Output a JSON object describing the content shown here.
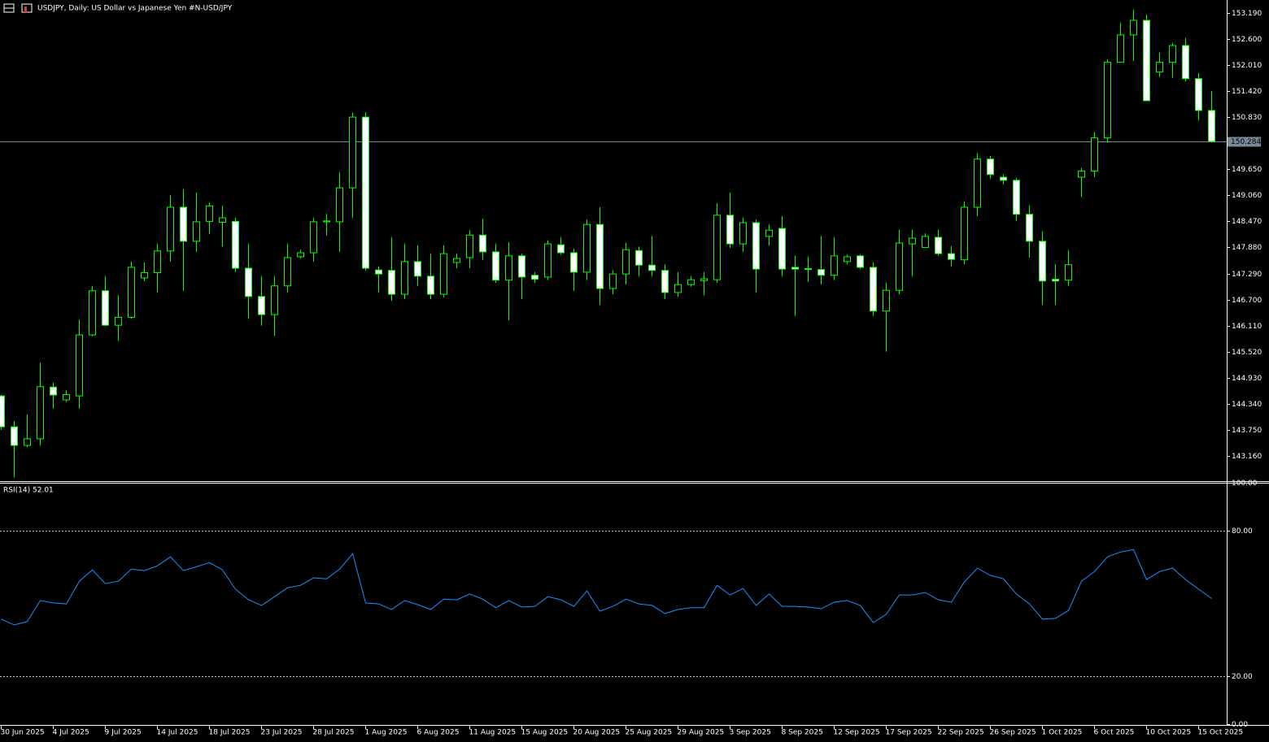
{
  "chart_data": [
    {
      "type": "candlestick",
      "title": "USDJPY, Daily:  US Dollar vs  Japanese Yen #N-USD/JPY",
      "categories": [
        "30 Jun 2025",
        null,
        null,
        null,
        "4 Jul 2025",
        null,
        null,
        null,
        "9 Jul 2025",
        null,
        null,
        null,
        "14 Jul 2025",
        null,
        null,
        null,
        "18 Jul 2025",
        null,
        null,
        null,
        "23 Jul 2025",
        null,
        null,
        null,
        "28 Jul 2025",
        null,
        null,
        null,
        "1 Aug 2025",
        null,
        null,
        null,
        "6 Aug 2025",
        null,
        null,
        null,
        "11 Aug 2025",
        null,
        null,
        null,
        "15 Aug 2025",
        null,
        null,
        null,
        "20 Aug 2025",
        null,
        null,
        null,
        "25 Aug 2025",
        null,
        null,
        null,
        "29 Aug 2025",
        null,
        null,
        null,
        "3 Sep 2025",
        null,
        null,
        null,
        "8 Sep 2025",
        null,
        null,
        null,
        "12 Sep 2025",
        null,
        null,
        null,
        "17 Sep 2025",
        null,
        null,
        null,
        "22 Sep 2025",
        null,
        null,
        null,
        "26 Sep 2025",
        null,
        null,
        null,
        "1 Oct 2025",
        null,
        null,
        null,
        "6 Oct 2025",
        null,
        null,
        null,
        "10 Oct 2025",
        null,
        null,
        null,
        "15 Oct 2025",
        null
      ],
      "open": [
        144.52,
        143.82,
        143.4,
        143.55,
        144.72,
        144.43,
        144.52,
        145.9,
        146.9,
        146.12,
        146.3,
        147.19,
        147.31,
        147.8,
        148.79,
        148.02,
        148.47,
        148.45,
        148.47,
        147.41,
        146.77,
        146.36,
        147.01,
        147.67,
        147.76,
        148.46,
        148.46,
        149.23,
        150.83,
        147.37,
        147.36,
        146.82,
        147.56,
        147.23,
        146.82,
        147.54,
        147.65,
        148.16,
        147.78,
        147.14,
        147.69,
        147.25,
        147.21,
        147.94,
        147.76,
        147.32,
        148.4,
        146.95,
        147.28,
        147.81,
        147.48,
        147.36,
        146.86,
        147.04,
        147.13,
        147.15,
        148.61,
        147.96,
        148.44,
        148.13,
        148.31,
        147.43,
        147.39,
        147.38,
        147.25,
        147.56,
        147.69,
        147.43,
        146.44,
        146.91,
        147.96,
        147.88,
        148.11,
        147.74,
        147.6,
        148.79,
        149.88,
        149.47,
        149.4,
        148.63,
        148.02,
        147.16,
        147.14,
        149.47,
        149.61,
        150.36,
        152.07,
        152.69,
        153.02,
        151.85,
        152.07,
        152.45,
        151.7,
        150.98
      ],
      "high": [
        144.55,
        143.95,
        144.1,
        145.27,
        144.82,
        144.65,
        146.25,
        147.01,
        147.23,
        146.8,
        147.56,
        147.54,
        147.96,
        149.07,
        149.2,
        149.12,
        148.9,
        148.82,
        148.55,
        147.96,
        147.23,
        147.23,
        147.96,
        147.83,
        148.55,
        148.64,
        149.58,
        150.93,
        150.94,
        147.45,
        148.11,
        147.96,
        147.93,
        147.74,
        147.93,
        147.74,
        148.27,
        148.53,
        147.96,
        148.0,
        147.74,
        147.32,
        148.04,
        148.11,
        147.85,
        148.51,
        148.79,
        147.36,
        147.98,
        147.9,
        148.14,
        147.5,
        147.32,
        147.23,
        147.32,
        148.88,
        149.12,
        148.55,
        148.51,
        148.4,
        148.59,
        147.69,
        147.67,
        148.14,
        148.11,
        147.72,
        147.72,
        147.54,
        147.08,
        148.28,
        148.28,
        148.2,
        148.28,
        147.91,
        148.92,
        150.01,
        149.95,
        149.53,
        149.45,
        148.83,
        148.24,
        147.5,
        147.82,
        149.68,
        150.49,
        152.14,
        152.97,
        153.26,
        153.15,
        152.29,
        152.51,
        152.62,
        151.83,
        151.42
      ],
      "low": [
        143.75,
        142.68,
        143.36,
        143.4,
        144.23,
        144.38,
        144.23,
        145.87,
        146.1,
        145.77,
        146.27,
        147.12,
        146.86,
        147.56,
        146.9,
        147.78,
        148.18,
        147.9,
        147.32,
        146.27,
        146.11,
        145.88,
        146.86,
        147.63,
        147.56,
        148.15,
        147.78,
        148.55,
        147.36,
        146.86,
        146.67,
        146.71,
        147.01,
        146.71,
        146.75,
        147.41,
        147.41,
        147.6,
        147.08,
        146.23,
        146.71,
        147.08,
        147.14,
        147.72,
        146.9,
        147.14,
        146.58,
        146.82,
        147.04,
        147.23,
        147.23,
        146.71,
        146.77,
        146.99,
        146.8,
        147.08,
        147.87,
        147.78,
        146.86,
        147.92,
        147.23,
        146.33,
        147.1,
        147.04,
        147.14,
        147.5,
        147.39,
        146.33,
        145.52,
        146.82,
        147.23,
        147.87,
        147.69,
        147.45,
        147.5,
        148.59,
        149.44,
        149.31,
        148.48,
        147.65,
        146.58,
        146.58,
        147.01,
        149.02,
        149.47,
        150.25,
        152.07,
        152.1,
        151.2,
        151.74,
        151.72,
        151.64,
        150.76,
        150.25
      ],
      "close": [
        143.82,
        143.4,
        143.55,
        144.73,
        144.54,
        144.55,
        145.9,
        146.9,
        146.12,
        146.3,
        147.43,
        147.31,
        147.8,
        148.79,
        148.02,
        148.46,
        148.82,
        148.55,
        147.41,
        146.77,
        146.36,
        147.01,
        147.65,
        147.76,
        148.46,
        148.48,
        149.23,
        150.83,
        147.41,
        147.28,
        146.82,
        147.56,
        147.23,
        146.82,
        147.74,
        147.63,
        148.16,
        147.78,
        147.14,
        147.69,
        147.21,
        147.16,
        147.96,
        147.76,
        147.32,
        148.4,
        146.95,
        147.28,
        147.83,
        147.48,
        147.36,
        146.86,
        147.04,
        147.15,
        147.17,
        148.61,
        147.96,
        148.44,
        147.39,
        148.27,
        147.39,
        147.39,
        147.4,
        147.25,
        147.69,
        147.67,
        147.43,
        146.44,
        146.91,
        147.98,
        148.09,
        148.13,
        147.74,
        147.61,
        148.79,
        149.88,
        149.53,
        149.4,
        148.63,
        148.02,
        147.12,
        147.12,
        147.49,
        149.61,
        150.36,
        152.07,
        152.69,
        153.02,
        151.2,
        152.07,
        152.45,
        151.7,
        150.98,
        150.28
      ],
      "up_color": "#00ff00",
      "down_color": "#ffffff",
      "ylim": [
        142.61,
        153.48
      ],
      "yticks": [
        {
          "value": 153.19,
          "label": "153.190"
        },
        {
          "value": 152.6,
          "label": "152.600"
        },
        {
          "value": 152.01,
          "label": "152.010"
        },
        {
          "value": 151.42,
          "label": "151.420"
        },
        {
          "value": 150.83,
          "label": "150.830"
        },
        {
          "value": 149.65,
          "label": "149.650"
        },
        {
          "value": 149.06,
          "label": "149.060"
        },
        {
          "value": 148.47,
          "label": "148.470"
        },
        {
          "value": 147.88,
          "label": "147.880"
        },
        {
          "value": 147.29,
          "label": "147.290"
        },
        {
          "value": 146.7,
          "label": "146.700"
        },
        {
          "value": 146.11,
          "label": "146.110"
        },
        {
          "value": 145.52,
          "label": "145.520"
        },
        {
          "value": 144.93,
          "label": "144.930"
        },
        {
          "value": 144.34,
          "label": "144.340"
        },
        {
          "value": 143.75,
          "label": "143.750"
        },
        {
          "value": 143.16,
          "label": "143.160"
        }
      ],
      "last_price": 150.284,
      "last_price_color": "#778899"
    },
    {
      "type": "line",
      "title": "RSI(14)",
      "color": "#1e90ff",
      "values": [
        43.5,
        41.1,
        42.5,
        51.2,
        50.2,
        49.8,
        59.2,
        63.9,
        58.2,
        59.2,
        64.2,
        63.6,
        65.6,
        69.3,
        63.6,
        65.2,
        66.9,
        63.9,
        55.9,
        51.5,
        49.2,
        52.8,
        56.5,
        57.5,
        60.6,
        60.2,
        64.2,
        70.6,
        50.2,
        49.8,
        47.5,
        51.2,
        49.5,
        47.5,
        51.8,
        51.5,
        53.9,
        51.8,
        48.2,
        51.2,
        48.5,
        48.8,
        52.8,
        51.5,
        48.8,
        55.2,
        46.8,
        48.8,
        51.8,
        49.8,
        49.2,
        45.8,
        47.5,
        48.2,
        48.2,
        57.5,
        53.5,
        56.2,
        49.2,
        53.9,
        48.8,
        48.8,
        48.5,
        47.8,
        50.5,
        51.2,
        49.2,
        42.1,
        45.5,
        53.5,
        53.5,
        54.5,
        51.5,
        50.5,
        58.9,
        64.6,
        61.6,
        60.2,
        53.9,
        49.8,
        43.5,
        43.8,
        47.1,
        59.2,
        63.2,
        69.3,
        71.3,
        72.3,
        59.9,
        63.2,
        64.6,
        59.9,
        55.9,
        52.01
      ],
      "ylim": [
        0,
        100
      ],
      "yticks": [
        {
          "value": 100,
          "label": "100.00"
        },
        {
          "value": 80,
          "label": "80.00"
        },
        {
          "value": 20,
          "label": "20.00"
        },
        {
          "value": 0,
          "label": "0.00"
        }
      ],
      "grid": "dashed"
    }
  ]
}
